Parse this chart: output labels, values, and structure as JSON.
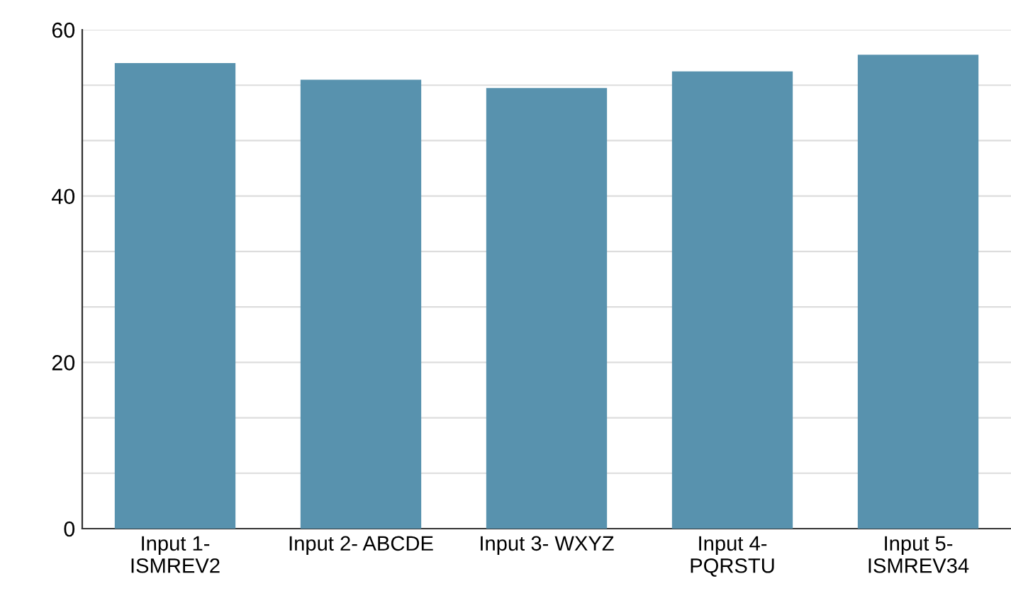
{
  "chart_data": {
    "type": "bar",
    "categories": [
      "Input 1-\nISMREV2",
      "Input 2- ABCDE",
      "Input 3- WXYZ",
      "Input 4-\nPQRSTU",
      "Input 5-\nISMREV34"
    ],
    "values": [
      56,
      54,
      53,
      55,
      57
    ],
    "color": "#5892ae",
    "ylim": [
      0,
      60
    ],
    "yticks": [
      0,
      {
        "value": 6.67,
        "label": null
      },
      {
        "value": 13.33,
        "label": null
      },
      20,
      {
        "value": 26.67,
        "label": null
      },
      {
        "value": 33.33,
        "label": null
      },
      40,
      {
        "value": 46.67,
        "label": null
      },
      {
        "value": 53.33,
        "label": null
      },
      60
    ],
    "grid": "y"
  }
}
